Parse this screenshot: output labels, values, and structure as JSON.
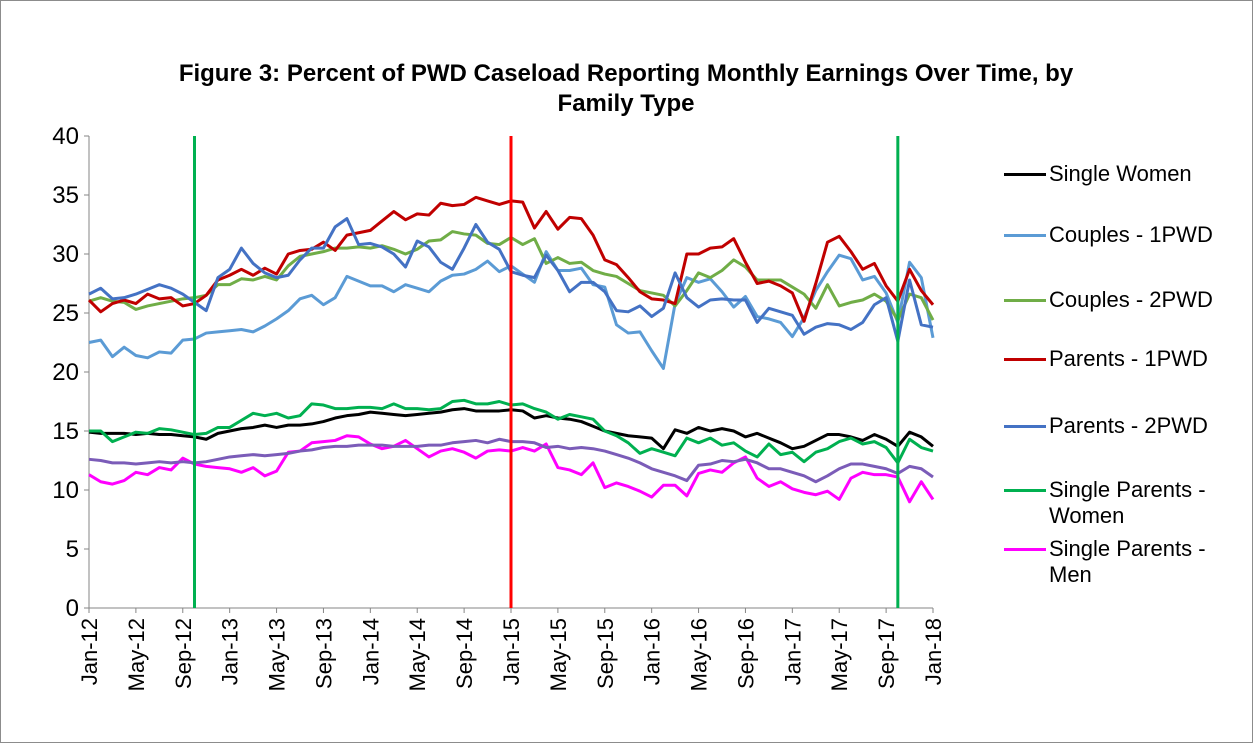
{
  "chart_data": {
    "type": "line",
    "title": "Figure 3: Percent of PWD Caseload Reporting Monthly Earnings Over Time, by Family Type",
    "categories": [
      "Jan-12",
      null,
      null,
      null,
      "May-12",
      null,
      null,
      null,
      "Sep-12",
      null,
      null,
      null,
      "Jan-13",
      null,
      null,
      null,
      "May-13",
      null,
      null,
      null,
      "Sep-13",
      null,
      null,
      null,
      "Jan-14",
      null,
      null,
      null,
      "May-14",
      null,
      null,
      null,
      "Sep-14",
      null,
      null,
      null,
      "Jan-15",
      null,
      null,
      null,
      "May-15",
      null,
      null,
      null,
      "Sep-15",
      null,
      null,
      null,
      "Jan-16",
      null,
      null,
      null,
      "May-16",
      null,
      null,
      null,
      "Sep-16",
      null,
      null,
      null,
      "Jan-17",
      null,
      null,
      null,
      "May-17",
      null,
      null,
      null,
      "Sep-17",
      null,
      null,
      null,
      "Jan-18"
    ],
    "ylim": [
      0,
      40
    ],
    "yticks": [
      0,
      5,
      10,
      15,
      20,
      25,
      30,
      35,
      40
    ],
    "grid": false,
    "legend": "right",
    "reference_lines": [
      {
        "x": 9,
        "color": "#00b050"
      },
      {
        "x": 36,
        "color": "#ff0000"
      },
      {
        "x": 69,
        "color": "#00b050"
      }
    ],
    "series": [
      {
        "name": "Single Women",
        "color": "#000000",
        "values": [
          14.9,
          14.8,
          14.8,
          14.8,
          14.7,
          14.8,
          14.7,
          14.7,
          14.6,
          14.5,
          14.3,
          14.8,
          15.0,
          15.2,
          15.3,
          15.5,
          15.3,
          15.5,
          15.5,
          15.6,
          15.8,
          16.1,
          16.3,
          16.4,
          16.6,
          16.5,
          16.4,
          16.3,
          16.4,
          16.5,
          16.6,
          16.8,
          16.9,
          16.7,
          16.7,
          16.7,
          16.8,
          16.7,
          16.1,
          16.3,
          16.1,
          16.0,
          15.8,
          15.4,
          15.0,
          14.8,
          14.6,
          14.5,
          14.4,
          13.5,
          15.1,
          14.8,
          15.3,
          15.0,
          15.2,
          15.0,
          14.5,
          14.8,
          14.4,
          14.0,
          13.5,
          13.7,
          14.2,
          14.7,
          14.7,
          14.5,
          14.2,
          14.7,
          14.3,
          13.7,
          14.9,
          14.5,
          13.7
        ]
      },
      {
        "name": "Couples - 1PWD",
        "color": "#5b9bd5",
        "values": [
          22.5,
          22.7,
          21.3,
          22.1,
          21.4,
          21.2,
          21.7,
          21.6,
          22.7,
          22.8,
          23.3,
          23.4,
          23.5,
          23.6,
          23.4,
          23.9,
          24.5,
          25.2,
          26.2,
          26.5,
          25.7,
          26.3,
          28.1,
          27.7,
          27.3,
          27.3,
          26.8,
          27.4,
          27.1,
          26.8,
          27.7,
          28.2,
          28.3,
          28.7,
          29.4,
          28.5,
          29.0,
          28.3,
          27.6,
          30.2,
          28.6,
          28.6,
          28.8,
          27.4,
          27.2,
          24.0,
          23.3,
          23.4,
          21.8,
          20.3,
          25.8,
          28.0,
          27.6,
          27.9,
          26.8,
          25.5,
          26.4,
          24.7,
          24.5,
          24.2,
          23.0,
          24.6,
          26.9,
          28.5,
          29.9,
          29.6,
          27.8,
          28.1,
          26.7,
          24.2,
          29.3,
          28.0,
          22.9
        ]
      },
      {
        "name": "Couples - 2PWD",
        "color": "#70ad47",
        "values": [
          26.0,
          26.3,
          26.0,
          25.9,
          25.3,
          25.6,
          25.8,
          26.0,
          26.2,
          26.3,
          26.5,
          27.4,
          27.4,
          27.9,
          27.8,
          28.1,
          27.8,
          29.0,
          29.8,
          30.0,
          30.2,
          30.5,
          30.5,
          30.6,
          30.5,
          30.7,
          30.4,
          30.0,
          30.4,
          31.1,
          31.2,
          31.9,
          31.7,
          31.6,
          30.9,
          30.8,
          31.4,
          30.8,
          31.3,
          29.2,
          29.7,
          29.2,
          29.3,
          28.6,
          28.3,
          28.1,
          27.5,
          26.9,
          26.7,
          26.5,
          25.6,
          26.9,
          28.4,
          28.0,
          28.6,
          29.5,
          28.9,
          27.8,
          27.8,
          27.8,
          27.2,
          26.6,
          25.4,
          27.4,
          25.6,
          25.9,
          26.1,
          26.6,
          26.0,
          24.4,
          26.6,
          26.3,
          24.4
        ]
      },
      {
        "name": "Parents - 1PWD",
        "color": "#c00000",
        "values": [
          26.1,
          25.1,
          25.8,
          26.1,
          25.8,
          26.6,
          26.2,
          26.3,
          25.6,
          25.8,
          26.5,
          27.8,
          28.2,
          28.7,
          28.2,
          28.8,
          28.3,
          30.0,
          30.3,
          30.4,
          31.0,
          30.3,
          31.6,
          31.8,
          32.0,
          32.8,
          33.6,
          32.9,
          33.4,
          33.3,
          34.3,
          34.1,
          34.2,
          34.8,
          34.5,
          34.2,
          34.5,
          34.4,
          32.2,
          33.6,
          32.1,
          33.1,
          33.0,
          31.6,
          29.5,
          29.1,
          28.0,
          26.8,
          26.2,
          26.1,
          25.8,
          30.0,
          30.0,
          30.5,
          30.6,
          31.3,
          29.3,
          27.5,
          27.7,
          27.3,
          26.7,
          24.3,
          27.5,
          31.0,
          31.5,
          30.2,
          28.7,
          29.2,
          27.3,
          26.0,
          28.7,
          26.9,
          25.7
        ]
      },
      {
        "name": "Parents - 2PWD",
        "color": "#4472c4",
        "values": [
          26.6,
          27.1,
          26.2,
          26.3,
          26.6,
          27.0,
          27.4,
          27.1,
          26.6,
          25.9,
          25.2,
          28.0,
          28.7,
          30.5,
          29.2,
          28.4,
          28.0,
          28.2,
          29.5,
          30.5,
          30.5,
          32.3,
          33.0,
          30.8,
          30.9,
          30.6,
          30.0,
          28.9,
          31.1,
          30.6,
          29.3,
          28.7,
          30.5,
          32.5,
          31.0,
          30.4,
          28.5,
          28.2,
          28.0,
          29.9,
          28.6,
          26.8,
          27.6,
          27.6,
          26.8,
          25.2,
          25.1,
          25.6,
          24.7,
          25.4,
          28.4,
          26.3,
          25.5,
          26.1,
          26.2,
          26.1,
          26.1,
          24.2,
          25.4,
          25.1,
          24.8,
          23.2,
          23.8,
          24.1,
          24.0,
          23.6,
          24.2,
          25.7,
          26.3,
          22.6,
          27.8,
          24.0,
          23.8
        ]
      },
      {
        "name": "Single Parents - Women",
        "color": "#00b050",
        "values": [
          15.0,
          15.0,
          14.1,
          14.5,
          14.9,
          14.8,
          15.2,
          15.1,
          14.9,
          14.7,
          14.8,
          15.3,
          15.3,
          15.9,
          16.5,
          16.3,
          16.5,
          16.1,
          16.3,
          17.3,
          17.2,
          16.9,
          16.9,
          17.0,
          17.0,
          16.9,
          17.3,
          16.9,
          16.9,
          16.8,
          16.9,
          17.5,
          17.6,
          17.3,
          17.3,
          17.5,
          17.2,
          17.3,
          16.9,
          16.6,
          16.0,
          16.4,
          16.2,
          16.0,
          15.0,
          14.6,
          14.0,
          13.1,
          13.5,
          13.2,
          12.9,
          14.4,
          14.0,
          14.4,
          13.8,
          14.0,
          13.3,
          12.8,
          13.9,
          13.0,
          13.2,
          12.4,
          13.2,
          13.5,
          14.1,
          14.4,
          13.9,
          14.1,
          13.6,
          12.3,
          14.3,
          13.6,
          13.3
        ]
      },
      {
        "name": "Single Parents - Men",
        "color": "#ff00ff",
        "values": [
          11.3,
          10.7,
          10.5,
          10.8,
          11.5,
          11.3,
          11.9,
          11.7,
          12.7,
          12.2,
          12.0,
          11.9,
          11.8,
          11.5,
          11.9,
          11.2,
          11.6,
          13.2,
          13.3,
          14.0,
          14.1,
          14.2,
          14.6,
          14.5,
          13.9,
          13.5,
          13.7,
          14.2,
          13.5,
          12.8,
          13.3,
          13.5,
          13.2,
          12.7,
          13.3,
          13.4,
          13.3,
          13.6,
          13.3,
          13.9,
          11.9,
          11.7,
          11.3,
          12.3,
          10.2,
          10.6,
          10.3,
          9.9,
          9.4,
          10.4,
          10.4,
          9.5,
          11.4,
          11.7,
          11.5,
          12.3,
          12.8,
          11.0,
          10.3,
          10.7,
          10.1,
          9.8,
          9.6,
          9.9,
          9.2,
          11.0,
          11.5,
          11.3,
          11.3,
          11.1,
          9.0,
          10.7,
          9.2
        ]
      },
      {
        "color": "#7b5cb8",
        "values": [
          12.6,
          12.5,
          12.3,
          12.3,
          12.2,
          12.3,
          12.4,
          12.3,
          12.4,
          12.3,
          12.4,
          12.6,
          12.8,
          12.9,
          13.0,
          12.9,
          13.0,
          13.1,
          13.3,
          13.4,
          13.6,
          13.7,
          13.7,
          13.8,
          13.8,
          13.8,
          13.7,
          13.7,
          13.7,
          13.8,
          13.8,
          14.0,
          14.1,
          14.2,
          14.0,
          14.3,
          14.1,
          14.1,
          14.0,
          13.6,
          13.7,
          13.5,
          13.6,
          13.5,
          13.3,
          13.0,
          12.7,
          12.3,
          11.8,
          11.5,
          11.2,
          10.8,
          12.1,
          12.2,
          12.5,
          12.4,
          12.6,
          12.3,
          11.8,
          11.8,
          11.5,
          11.2,
          10.7,
          11.2,
          11.8,
          12.2,
          12.2,
          12.0,
          11.8,
          11.4,
          12.0,
          11.8,
          11.1
        ]
      }
    ]
  }
}
